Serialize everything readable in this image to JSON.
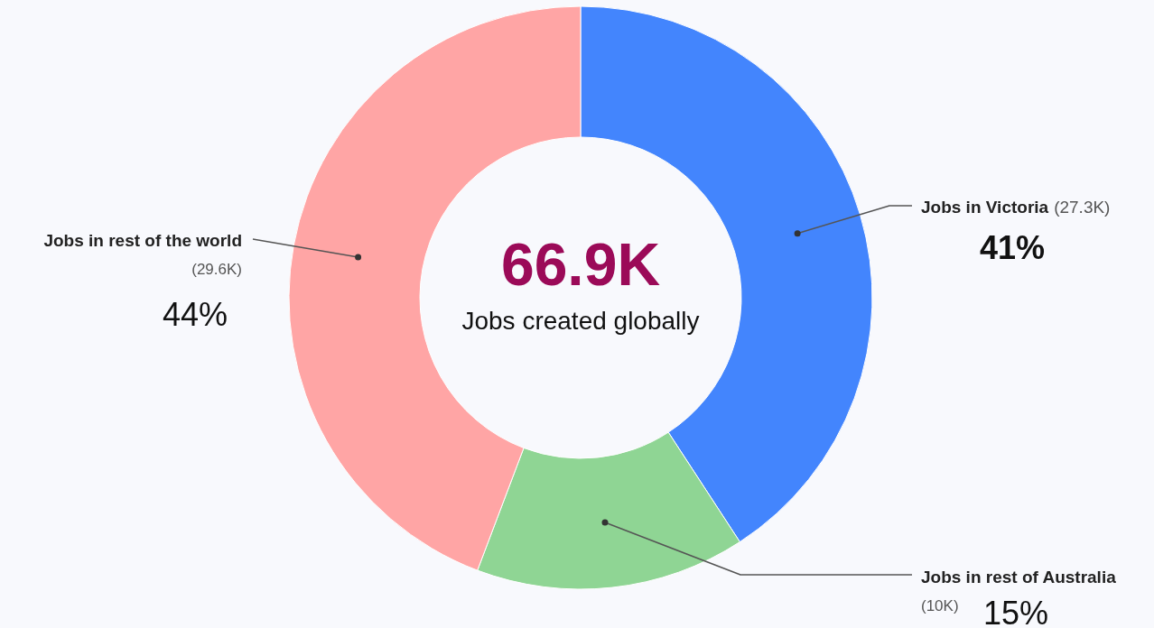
{
  "chart_data": {
    "type": "donut",
    "categories": [
      "Jobs in Victoria",
      "Jobs in rest of Australia",
      "Jobs in rest of the world"
    ],
    "values": [
      27.3,
      10,
      29.6
    ],
    "colors": [
      "#4385fd",
      "#8fd594",
      "#ffa5a5"
    ],
    "value_labels": [
      "(27.3K)",
      "(10K)",
      "(29.6K)"
    ],
    "annotations": [
      "66.9K",
      "Jobs created globally",
      {
        "text": "41%",
        "x": "Jobs in Victoria"
      },
      {
        "text": "15%",
        "x": "Jobs in rest of Australia"
      },
      {
        "text": "44%",
        "x": "Jobs in rest of the world"
      }
    ]
  }
}
